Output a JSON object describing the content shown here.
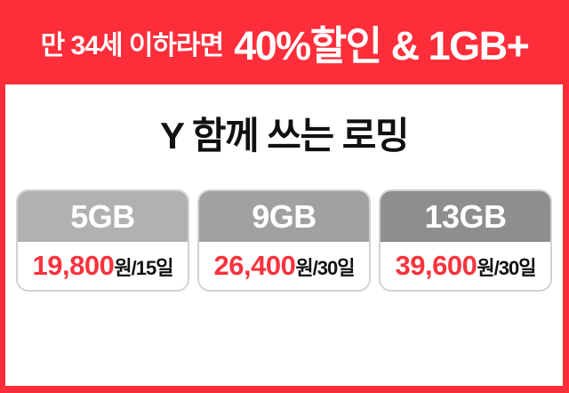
{
  "banner": {
    "prefix": "만 34세 이하라면",
    "highlight": "40%할인 & 1GB+"
  },
  "panel": {
    "title": "Y 함께 쓰는 로밍"
  },
  "plans": [
    {
      "data_amount": "5GB",
      "price": "19,800",
      "unit": "원/15일",
      "header_color": "#b1b1b1"
    },
    {
      "data_amount": "9GB",
      "price": "26,400",
      "unit": "원/30일",
      "header_color": "#a1a1a1"
    },
    {
      "data_amount": "13GB",
      "price": "39,600",
      "unit": "원/30일",
      "header_color": "#8e8e8e"
    }
  ],
  "colors": {
    "background_red": "#fd2e3a",
    "price_red": "#f8333c",
    "card_border": "#d2d2d2",
    "title_black": "#111111",
    "header_text": "#ffffff"
  }
}
